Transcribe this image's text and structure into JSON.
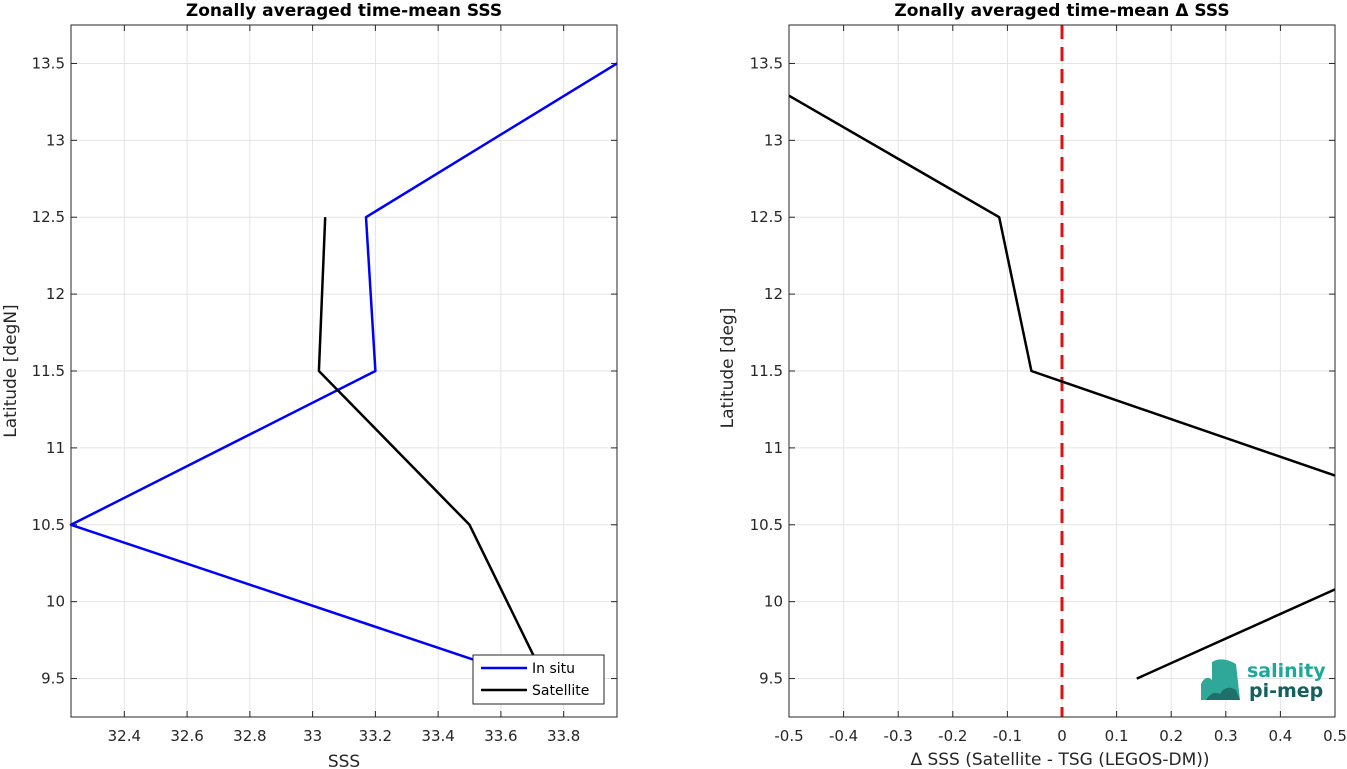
{
  "chart_data": [
    {
      "type": "line",
      "title": "Zonally averaged time-mean SSS",
      "xlabel": "SSS",
      "ylabel": "Latitude [degN]",
      "xlim": [
        32.23,
        33.97
      ],
      "ylim": [
        9.25,
        13.75
      ],
      "xticks": [
        "32.4",
        "32.6",
        "32.8",
        "33",
        "33.2",
        "33.4",
        "33.6",
        "33.8"
      ],
      "yticks": [
        "9.5",
        "10",
        "10.5",
        "11",
        "11.5",
        "12",
        "12.5",
        "13",
        "13.5"
      ],
      "grid": true,
      "legend_position": "bottom-right",
      "series": [
        {
          "name": "In situ",
          "color": "#0000ff",
          "points": [
            [
              33.97,
              13.5
            ],
            [
              33.17,
              12.5
            ],
            [
              33.2,
              11.5
            ],
            [
              32.23,
              10.5
            ],
            [
              33.59,
              9.57
            ]
          ]
        },
        {
          "name": "Satellite",
          "color": "#000000",
          "points": [
            [
              33.04,
              12.5
            ],
            [
              33.02,
              11.5
            ],
            [
              33.5,
              10.5
            ],
            [
              33.74,
              9.5
            ]
          ]
        }
      ]
    },
    {
      "type": "line",
      "title": "Zonally averaged time-mean Δ SSS",
      "xlabel": "Δ SSS (Satellite - TSG (LEGOS-DM))",
      "ylabel": "Latitude [deg]",
      "xlim": [
        -0.5,
        0.5
      ],
      "ylim": [
        9.25,
        13.75
      ],
      "xticks": [
        "-0.5",
        "-0.4",
        "-0.3",
        "-0.2",
        "-0.1",
        "0",
        "0.1",
        "0.2",
        "0.3",
        "0.4",
        "0.5"
      ],
      "yticks": [
        "9.5",
        "10",
        "10.5",
        "11",
        "11.5",
        "12",
        "12.5",
        "13",
        "13.5"
      ],
      "grid": true,
      "reference_line": {
        "x": 0,
        "color": "#e01010",
        "style": "dashed"
      },
      "series": [
        {
          "color": "#000000",
          "segments": [
            [
              [
                -0.5,
                13.29
              ],
              [
                -0.115,
                12.5
              ],
              [
                -0.056,
                11.5
              ],
              [
                0.5,
                10.82
              ]
            ],
            [
              [
                0.137,
                9.5
              ],
              [
                0.5,
                10.08
              ]
            ]
          ]
        }
      ]
    }
  ],
  "logo": {
    "line1": "salinity",
    "line2": "pi-mep"
  }
}
